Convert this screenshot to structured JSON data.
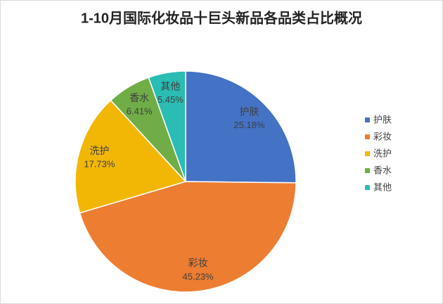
{
  "chart_data": {
    "type": "pie",
    "title": "1-10月国际化妆品十巨头新品各品类占比概况",
    "categories": [
      "护肤",
      "彩妆",
      "洗护",
      "香水",
      "其他"
    ],
    "values": [
      25.18,
      45.23,
      17.73,
      6.41,
      5.45
    ],
    "value_labels": [
      "25.18%",
      "45.23%",
      "17.73%",
      "6.41%",
      "5.45%"
    ],
    "colors": [
      "#4472c4",
      "#ed7d31",
      "#f2b705",
      "#70ad47",
      "#2bbcb4"
    ],
    "legend": "right"
  }
}
